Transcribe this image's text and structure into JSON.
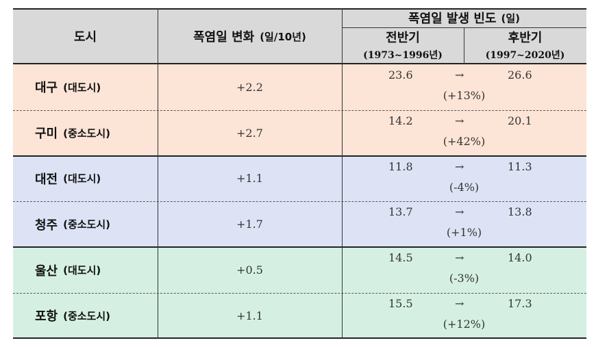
{
  "header": {
    "col_city": "도시",
    "col_change": "폭염일 변화",
    "col_change_unit": "(일/10년)",
    "col_freq": "폭염일 발생 빈도",
    "col_freq_unit": "(일)",
    "first_half": "전반기",
    "first_half_years": "(1973~1996년)",
    "second_half": "후반기",
    "second_half_years": "(1997~2020년)"
  },
  "arrow": "→",
  "colors": {
    "header": "#d9d9d9",
    "group1": "#fce4d6",
    "group2": "#dde3f5",
    "group3": "#d5f0e2"
  },
  "rows": [
    {
      "city": "대구",
      "type": "(대도시)",
      "change": "+2.2",
      "first": "23.6",
      "second": "26.6",
      "pct": "(+13%)"
    },
    {
      "city": "구미",
      "type": "(중소도시)",
      "change": "+2.7",
      "first": "14.2",
      "second": "20.1",
      "pct": "(+42%)"
    },
    {
      "city": "대전",
      "type": "(대도시)",
      "change": "+1.1",
      "first": "11.8",
      "second": "11.3",
      "pct": "(-4%)"
    },
    {
      "city": "청주",
      "type": "(중소도시)",
      "change": "+1.7",
      "first": "13.7",
      "second": "13.8",
      "pct": "(+1%)"
    },
    {
      "city": "울산",
      "type": "(대도시)",
      "change": "+0.5",
      "first": "14.5",
      "second": "14.0",
      "pct": "(-3%)"
    },
    {
      "city": "포항",
      "type": "(중소도시)",
      "change": "+1.1",
      "first": "15.5",
      "second": "17.3",
      "pct": "(+12%)"
    }
  ]
}
